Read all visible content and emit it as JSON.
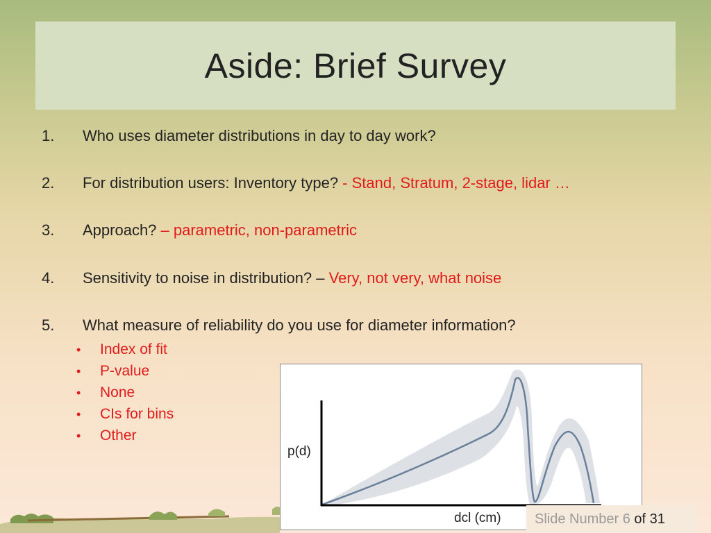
{
  "slide": {
    "title": "Aside: Brief Survey",
    "questions": [
      {
        "num": "1.",
        "text": "Who uses diameter distributions in day to day work?",
        "answer": ""
      },
      {
        "num": "2.",
        "text": "For distribution users: Inventory type?",
        "answer": " - Stand, Stratum, 2-stage, lidar …"
      },
      {
        "num": "3.",
        "text": "Approach?",
        "answer": " – parametric, non-parametric"
      },
      {
        "num": "4.",
        "text": "Sensitivity to noise in distribution? –",
        "answer": " Very, not very, what noise"
      },
      {
        "num": "5.",
        "text": "What measure of reliability do you use for diameter information?",
        "answer": ""
      }
    ],
    "bullets": [
      "Index of fit",
      "P-value",
      "None",
      "CIs for bins",
      "Other"
    ],
    "bullet_glyph": "•",
    "footer": {
      "prefix": "Slide Number ",
      "current": "6",
      "suffix": " of 31"
    }
  },
  "chart_data": {
    "type": "line",
    "xlabel": "dcl (cm)",
    "ylabel": "p(d)",
    "line_color": "#6a809a",
    "band_color": "#d9dde2",
    "series": [
      {
        "values": []
      }
    ]
  }
}
